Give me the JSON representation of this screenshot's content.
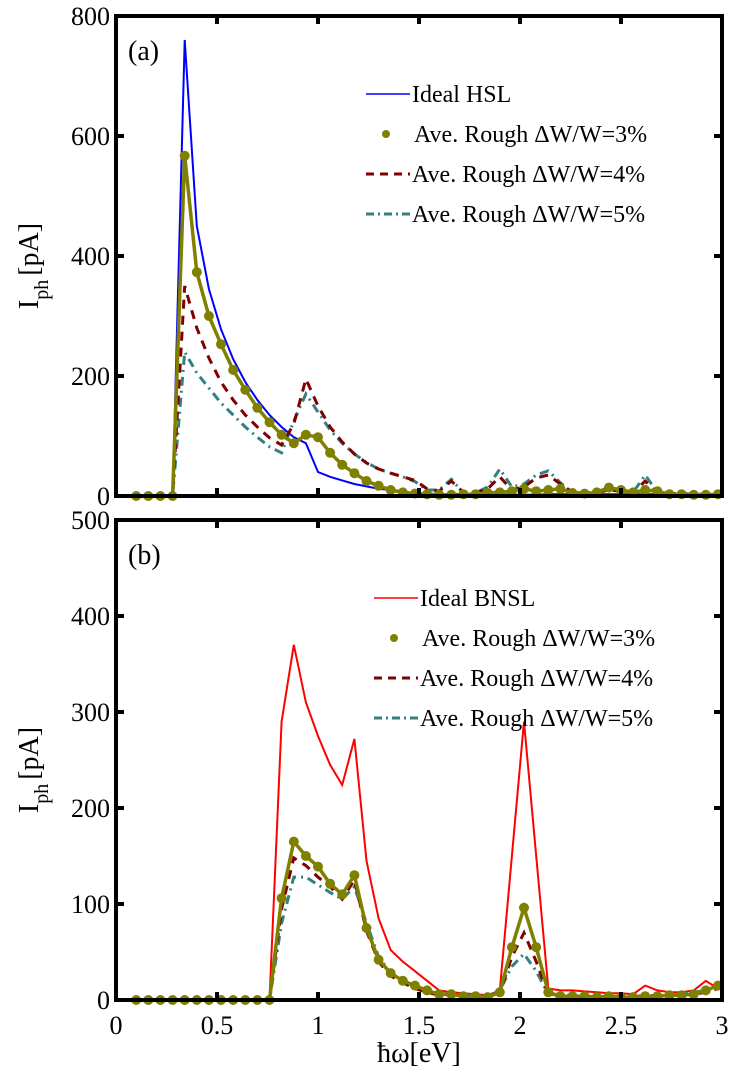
{
  "chart_data": [
    {
      "type": "line",
      "panel_label": "(a)",
      "title": "",
      "xlabel": "ħω[eV]",
      "ylabel": "I_ph [pA]",
      "ylabel_main": "I",
      "ylabel_sub": "ph",
      "ylabel_unit": "[pA]",
      "xlim": [
        0,
        3
      ],
      "ylim": [
        0,
        800
      ],
      "xticks": [
        0,
        0.5,
        1,
        1.5,
        2,
        2.5,
        3
      ],
      "yticks": [
        0,
        200,
        400,
        600,
        800
      ],
      "ytick_labels": [
        "0",
        "200",
        "400",
        "600",
        "800"
      ],
      "legend_position": "top-right",
      "grid": false,
      "x": [
        0.1,
        0.16,
        0.22,
        0.28,
        0.34,
        0.4,
        0.46,
        0.52,
        0.58,
        0.64,
        0.7,
        0.76,
        0.82,
        0.88,
        0.94,
        1.0,
        1.06,
        1.12,
        1.18,
        1.24,
        1.3,
        1.36,
        1.42,
        1.48,
        1.54,
        1.6,
        1.66,
        1.72,
        1.78,
        1.84,
        1.9,
        1.96,
        2.02,
        2.08,
        2.14,
        2.2,
        2.26,
        2.32,
        2.38,
        2.44,
        2.5,
        2.56,
        2.62,
        2.68,
        2.74,
        2.8,
        2.86,
        2.92,
        2.98
      ],
      "series": [
        {
          "name": "Ideal HSL",
          "style": "solid",
          "color": "#0000ff",
          "values": [
            0,
            0,
            0,
            0,
            760,
            450,
            345,
            278,
            228,
            190,
            160,
            135,
            115,
            98,
            88,
            40,
            32,
            26,
            20,
            16,
            12,
            10,
            7,
            5,
            4,
            3,
            3,
            2,
            2,
            2,
            2,
            2,
            2,
            2,
            3,
            3,
            3,
            3,
            3,
            3,
            3,
            3,
            3,
            3,
            3,
            3,
            3,
            3,
            3
          ]
        },
        {
          "name": "Ave. Rough ΔW/W=3%",
          "style": "marker-line",
          "color": "#808000",
          "values": [
            0,
            0,
            0,
            0,
            567,
            373,
            300,
            253,
            210,
            177,
            147,
            123,
            102,
            88,
            102,
            98,
            72,
            52,
            38,
            25,
            17,
            10,
            6,
            4,
            3,
            2,
            2,
            3,
            3,
            5,
            6,
            8,
            12,
            8,
            10,
            12,
            5,
            4,
            6,
            14,
            10,
            6,
            10,
            8,
            3,
            3,
            2,
            2,
            3
          ]
        },
        {
          "name": "Ave. Rough ΔW/W=4%",
          "style": "dashed",
          "color": "#800000",
          "values": [
            0,
            0,
            0,
            0,
            350,
            280,
            230,
            190,
            160,
            135,
            115,
            97,
            85,
            120,
            195,
            150,
            115,
            90,
            70,
            55,
            45,
            38,
            32,
            26,
            12,
            8,
            25,
            6,
            6,
            12,
            32,
            10,
            15,
            30,
            35,
            20,
            5,
            5,
            6,
            10,
            8,
            5,
            25,
            5,
            4,
            4,
            3,
            3,
            3
          ]
        },
        {
          "name": "Ave. Rough ΔW/W=5%",
          "style": "dash-dot",
          "color": "#338080",
          "values": [
            0,
            0,
            0,
            0,
            240,
            205,
            180,
            155,
            135,
            115,
            98,
            82,
            72,
            125,
            170,
            140,
            110,
            88,
            70,
            56,
            45,
            38,
            32,
            24,
            10,
            10,
            28,
            5,
            5,
            15,
            45,
            15,
            20,
            35,
            42,
            22,
            6,
            5,
            8,
            12,
            8,
            6,
            35,
            6,
            4,
            4,
            3,
            3,
            3
          ]
        }
      ]
    },
    {
      "type": "line",
      "panel_label": "(b)",
      "title": "",
      "xlabel": "ħω[eV]",
      "ylabel": "I_ph [pA]",
      "ylabel_main": "I",
      "ylabel_sub": "ph",
      "ylabel_unit": "[pA]",
      "xlim": [
        0,
        3
      ],
      "ylim": [
        0,
        500
      ],
      "xticks": [
        0,
        0.5,
        1,
        1.5,
        2,
        2.5,
        3
      ],
      "xtick_labels": [
        "0",
        "0.5",
        "1",
        "1.5",
        "2",
        "2.5",
        "3"
      ],
      "yticks": [
        0,
        100,
        200,
        300,
        400,
        500
      ],
      "ytick_labels": [
        "0",
        "100",
        "200",
        "300",
        "400",
        "500"
      ],
      "legend_position": "top-right",
      "grid": false,
      "x": [
        0.1,
        0.16,
        0.22,
        0.28,
        0.34,
        0.4,
        0.46,
        0.52,
        0.58,
        0.64,
        0.7,
        0.76,
        0.82,
        0.88,
        0.94,
        1.0,
        1.06,
        1.12,
        1.18,
        1.24,
        1.3,
        1.36,
        1.42,
        1.48,
        1.54,
        1.6,
        1.66,
        1.72,
        1.78,
        1.84,
        1.9,
        1.96,
        2.02,
        2.08,
        2.14,
        2.2,
        2.26,
        2.32,
        2.38,
        2.44,
        2.5,
        2.56,
        2.62,
        2.68,
        2.74,
        2.8,
        2.86,
        2.92,
        2.98
      ],
      "series": [
        {
          "name": "Ideal BNSL",
          "style": "solid",
          "color": "#ff0000",
          "values": [
            0,
            0,
            0,
            0,
            0,
            0,
            0,
            0,
            0,
            0,
            0,
            0,
            290,
            370,
            310,
            275,
            245,
            224,
            272,
            145,
            85,
            52,
            40,
            30,
            20,
            10,
            8,
            7,
            6,
            5,
            10,
            150,
            290,
            150,
            12,
            10,
            10,
            9,
            8,
            7,
            7,
            6,
            15,
            10,
            8,
            8,
            10,
            20,
            12
          ]
        },
        {
          "name": "Ave. Rough ΔW/W=3%",
          "style": "marker-line",
          "color": "#808000",
          "values": [
            0,
            0,
            0,
            0,
            0,
            0,
            0,
            0,
            0,
            0,
            0,
            0,
            106,
            165,
            150,
            139,
            121,
            110,
            130,
            75,
            42,
            28,
            20,
            15,
            10,
            6,
            6,
            4,
            4,
            3,
            8,
            55,
            96,
            55,
            8,
            4,
            4,
            4,
            3,
            4,
            3,
            3,
            4,
            4,
            5,
            5,
            6,
            10,
            15
          ]
        },
        {
          "name": "Ave. Rough ΔW/W=4%",
          "style": "dashed",
          "color": "#800000",
          "values": [
            0,
            0,
            0,
            0,
            0,
            0,
            0,
            0,
            0,
            0,
            0,
            0,
            95,
            148,
            140,
            128,
            118,
            105,
            125,
            72,
            40,
            25,
            18,
            12,
            8,
            5,
            5,
            4,
            4,
            3,
            8,
            45,
            70,
            40,
            6,
            4,
            4,
            4,
            3,
            4,
            3,
            3,
            5,
            4,
            5,
            5,
            6,
            8,
            12
          ]
        },
        {
          "name": "Ave. Rough ΔW/W=5%",
          "style": "dash-dot",
          "color": "#338080",
          "values": [
            0,
            0,
            0,
            0,
            0,
            0,
            0,
            0,
            0,
            0,
            0,
            0,
            80,
            128,
            128,
            120,
            112,
            105,
            118,
            80,
            45,
            28,
            20,
            14,
            9,
            6,
            6,
            5,
            5,
            4,
            10,
            35,
            48,
            30,
            6,
            5,
            5,
            4,
            3,
            4,
            3,
            3,
            4,
            5,
            5,
            6,
            8,
            10,
            15
          ]
        }
      ]
    }
  ],
  "shared_xlabel": "ħω[eV]"
}
